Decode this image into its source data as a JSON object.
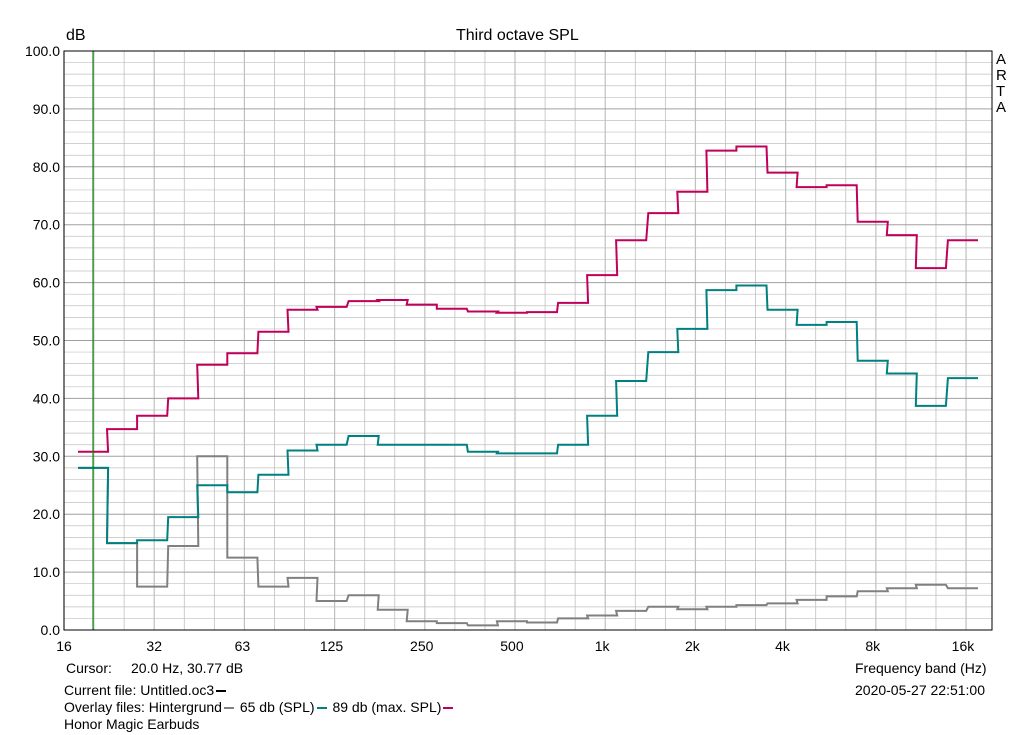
{
  "chart_data": {
    "type": "line",
    "title": "Third octave SPL",
    "ylabel": "dB",
    "xlabel": "Frequency band (Hz)",
    "x_scale": "log",
    "xlim": [
      16,
      20000
    ],
    "ylim": [
      0,
      100
    ],
    "y_ticks": [
      "100.0",
      "90.0",
      "80.0",
      "70.0",
      "60.0",
      "50.0",
      "40.0",
      "30.0",
      "20.0",
      "10.0",
      "0.0"
    ],
    "y_tick_values": [
      100,
      90,
      80,
      70,
      60,
      50,
      40,
      30,
      20,
      10,
      0
    ],
    "x_tick_labels": [
      "16",
      "32",
      "63",
      "125",
      "250",
      "500",
      "1k",
      "2k",
      "4k",
      "8k",
      "16k"
    ],
    "x_tick_values": [
      16,
      32,
      63,
      125,
      250,
      500,
      1000,
      2000,
      4000,
      8000,
      16000
    ],
    "bands": [
      20,
      25,
      31.5,
      40,
      50,
      63,
      80,
      100,
      125,
      160,
      200,
      250,
      315,
      400,
      500,
      630,
      800,
      1000,
      1250,
      1600,
      2000,
      2500,
      3150,
      4000,
      5000,
      6300,
      8000,
      10000,
      12500,
      16000
    ],
    "series": [
      {
        "name": "65 db (SPL)",
        "color": "#808080",
        "values": [
          28,
          15,
          7.5,
          14.5,
          30,
          12.5,
          7.5,
          9,
          5,
          6,
          3.5,
          1.5,
          1.2,
          0.8,
          1.5,
          1.3,
          2,
          2.5,
          3.3,
          4,
          3.6,
          4,
          4.3,
          4.6,
          5.2,
          5.8,
          6.7,
          7.2,
          7.8,
          7.2
        ]
      },
      {
        "name": "89 db (max. SPL)",
        "color": "#008080",
        "values": [
          28,
          15,
          15.5,
          19.5,
          25,
          23.8,
          26.8,
          31,
          32,
          33.5,
          32,
          32,
          32,
          30.8,
          30.5,
          30.5,
          32,
          37,
          43,
          48,
          52,
          58.7,
          59.5,
          55.3,
          52.7,
          53.2,
          46.5,
          44.3,
          38.7,
          43.5
        ]
      },
      {
        "name": "",
        "color": "#c0005a",
        "values": [
          30.77,
          34.7,
          37,
          40,
          45.8,
          47.8,
          51.5,
          55.3,
          55.8,
          56.8,
          57,
          56.2,
          55.5,
          55,
          54.8,
          54.9,
          56.5,
          61.3,
          67.3,
          72,
          75.7,
          82.8,
          83.5,
          79,
          76.5,
          76.8,
          70.5,
          68.2,
          62.5,
          67.3
        ]
      }
    ],
    "cursor_line_x": 20,
    "grid": true,
    "watermark_letters": [
      "A",
      "R",
      "T",
      "A"
    ]
  },
  "footer": {
    "cursor_label": "Cursor:",
    "cursor_value": "20.0 Hz, 30.77 dB",
    "current_file": "Current file: Untitled.oc3",
    "overlay_label": "Overlay files: Hintergrund",
    "overlay_1": "65 db (SPL)",
    "overlay_2": "89 db (max. SPL)",
    "device": "Honor Magic Earbuds",
    "timestamp": "2020-05-27  22:51:00"
  },
  "colors": {
    "grid": "#c0c0c0",
    "frame": "#000000",
    "cursor": "#008000",
    "current_swatch": "#000000"
  }
}
